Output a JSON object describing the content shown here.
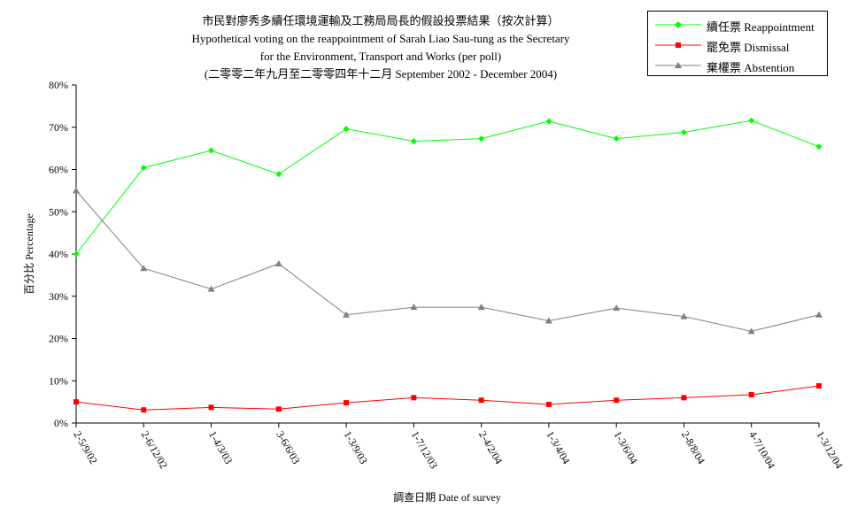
{
  "chart_data": {
    "type": "line",
    "title_lines": [
      "市民對廖秀多續任環境運輸及工務局局長的假設投票結果（按次計算）",
      "Hypothetical voting on the reappointment of Sarah Liao Sau-tung as the Secretary",
      "for the Environment, Transport and Works (per poll)",
      "(二零零二年九月至二零零四年十二月 September 2002 - December 2004)"
    ],
    "xlabel": "調查日期 Date of survey",
    "ylabel": "百分比 Percentage",
    "ylim": [
      0,
      80
    ],
    "yticks": [
      "0%",
      "10%",
      "20%",
      "30%",
      "40%",
      "50%",
      "60%",
      "70%",
      "80%"
    ],
    "categories": [
      "2-5/9/02",
      "2-6/12/02",
      "1-4/3/03",
      "3-6/6/03",
      "1-3/9/03",
      "1-7/12/03",
      "2-4/2/04",
      "1-3/4/04",
      "1-3/6/04",
      "2-8/8/04",
      "4-7/10/04",
      "1-3/12/04"
    ],
    "series": [
      {
        "name": "續任票 Reappointment",
        "color": "#00ff00",
        "marker": "diamond",
        "values": [
          40.0,
          60.4,
          64.5,
          58.9,
          69.6,
          66.7,
          67.3,
          71.4,
          67.3,
          68.8,
          71.6,
          65.4
        ]
      },
      {
        "name": "罷免票 Dismissal",
        "color": "#ff0000",
        "marker": "square",
        "values": [
          5.0,
          3.1,
          3.7,
          3.3,
          4.8,
          6.0,
          5.4,
          4.4,
          5.4,
          6.0,
          6.7,
          8.8
        ]
      },
      {
        "name": "棄權票 Abstention",
        "color": "#808080",
        "marker": "triangle",
        "values": [
          55.0,
          36.6,
          31.7,
          37.7,
          25.6,
          27.4,
          27.4,
          24.2,
          27.2,
          25.2,
          21.7,
          25.6
        ]
      }
    ],
    "grid": false,
    "legend_position": "top-right"
  }
}
